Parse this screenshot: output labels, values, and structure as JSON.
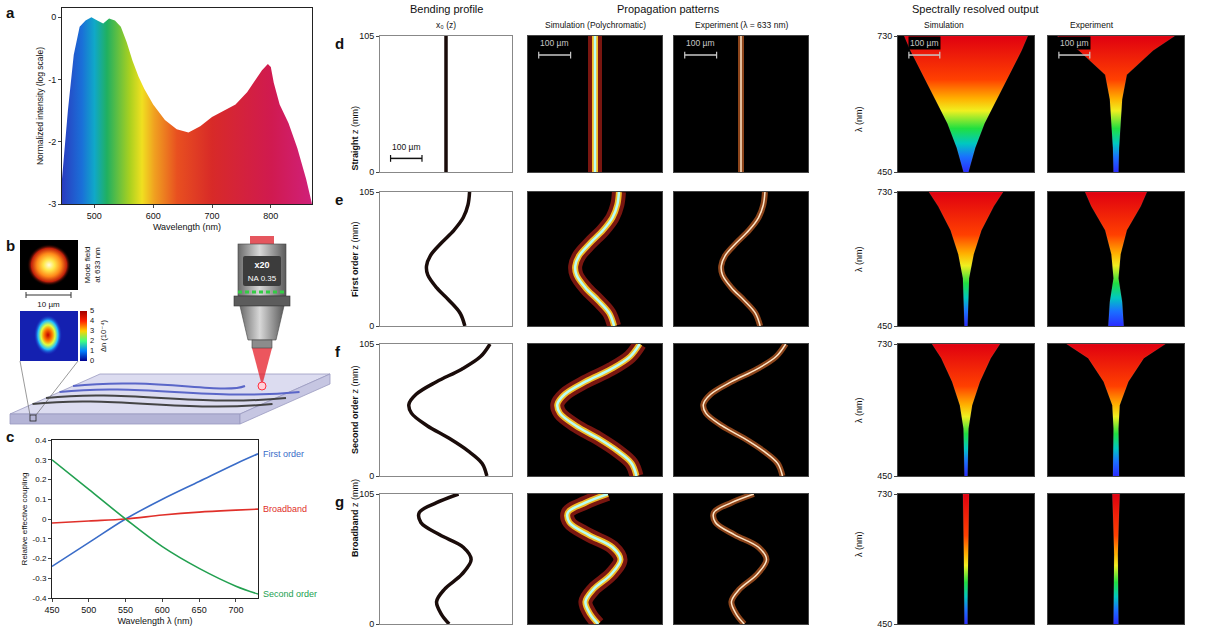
{
  "chart_data": [
    {
      "panel": "a",
      "type": "area",
      "x_label": "Wavelength (nm)",
      "y_label": "Normalized intensity (log scale)",
      "x": [
        445,
        455,
        465,
        475,
        485,
        495,
        505,
        515,
        525,
        535,
        545,
        555,
        565,
        575,
        585,
        600,
        620,
        640,
        660,
        680,
        700,
        720,
        740,
        760,
        775,
        785,
        795,
        800,
        805,
        815,
        830,
        845,
        860,
        870
      ],
      "values": [
        -2.6,
        -1.5,
        -0.6,
        -0.15,
        -0.05,
        0,
        -0.05,
        -0.1,
        -0.02,
        -0.05,
        -0.15,
        -0.4,
        -0.7,
        -0.95,
        -1.15,
        -1.4,
        -1.65,
        -1.8,
        -1.85,
        -1.75,
        -1.6,
        -1.5,
        -1.4,
        -1.2,
        -1.0,
        -0.85,
        -0.75,
        -0.8,
        -1.05,
        -1.4,
        -1.7,
        -2.1,
        -2.6,
        -3.0
      ],
      "xlim": [
        445,
        870
      ],
      "ylim": [
        -3,
        0.15
      ],
      "xticks": [
        500,
        600,
        700,
        800
      ],
      "yticks": [
        0,
        -1,
        -2,
        -3
      ]
    },
    {
      "panel": "c",
      "type": "line",
      "x_label": "Wavelength λ (nm)",
      "y_label": "Relative effective coupling",
      "x": [
        450,
        500,
        550,
        600,
        650,
        700,
        730
      ],
      "series": [
        {
          "name": "First order",
          "color": "#3a6cc8",
          "values": [
            -0.24,
            -0.12,
            0,
            0.1,
            0.19,
            0.28,
            0.33
          ]
        },
        {
          "name": "Broadband",
          "color": "#e0302a",
          "values": [
            -0.02,
            -0.01,
            0,
            0.02,
            0.035,
            0.045,
            0.05
          ]
        },
        {
          "name": "Second order",
          "color": "#22a050",
          "values": [
            0.3,
            0.15,
            0,
            -0.14,
            -0.25,
            -0.34,
            -0.38
          ]
        }
      ],
      "xlim": [
        450,
        730
      ],
      "ylim": [
        -0.4,
        0.4
      ],
      "xticks": [
        450,
        500,
        550,
        600,
        650,
        700
      ],
      "yticks": [
        -0.4,
        -0.3,
        -0.2,
        -0.1,
        0,
        0.1,
        0.2,
        0.3,
        0.4
      ]
    },
    {
      "panel": "d",
      "type": "line",
      "row_title": "Straight",
      "y_label": "z (mm)",
      "ylim": [
        0,
        105
      ],
      "yticks": [
        0,
        105
      ],
      "xlim": [
        -210,
        210
      ],
      "tick_labels": "y",
      "bending_profile": {
        "z": [
          0,
          105
        ],
        "x0": [
          0,
          0
        ]
      },
      "spectral": {
        "type": "area",
        "y_label": "λ (nm)",
        "ylim": [
          450,
          730
        ],
        "yticks": [
          450,
          730
        ],
        "xlim": [
          -220,
          220
        ],
        "wavelength": [
          450,
          500,
          550,
          600,
          650,
          700,
          730
        ],
        "simulation": {
          "left": [
            -8,
            -30,
            -60,
            -100,
            -140,
            -180,
            -200
          ],
          "right": [
            8,
            30,
            60,
            100,
            140,
            180,
            200
          ]
        },
        "experiment": {
          "left": [
            -8,
            -10,
            -15,
            -20,
            -35,
            -120,
            -190
          ],
          "right": [
            8,
            10,
            15,
            20,
            35,
            120,
            190
          ]
        }
      },
      "scale_bar": {
        "length": 100,
        "label": "100 µm"
      }
    },
    {
      "panel": "e",
      "type": "line",
      "row_title": "First order",
      "y_label": "z (mm)",
      "ylim": [
        0,
        105
      ],
      "yticks": [
        0,
        105
      ],
      "xlim": [
        -210,
        210
      ],
      "tick_labels": "y",
      "bending_profile": {
        "z": [
          0,
          10,
          20,
          30,
          40,
          47,
          55,
          65,
          75,
          85,
          95,
          105
        ],
        "x0": [
          60,
          45,
          10,
          -30,
          -58,
          -62,
          -50,
          -15,
          25,
          55,
          70,
          75
        ]
      },
      "spectral": {
        "type": "area",
        "y_label": "λ (nm)",
        "ylim": [
          450,
          730
        ],
        "yticks": [
          450,
          730
        ],
        "xlim": [
          -220,
          220
        ],
        "wavelength": [
          450,
          500,
          550,
          600,
          650,
          700,
          730
        ],
        "simulation": {
          "left": [
            -5,
            -8,
            -10,
            -25,
            -50,
            -90,
            -120
          ],
          "right": [
            5,
            8,
            10,
            25,
            50,
            90,
            120
          ]
        },
        "experiment": {
          "left": [
            -25,
            -20,
            -8,
            -15,
            -35,
            -80,
            -100
          ],
          "right": [
            25,
            20,
            8,
            15,
            35,
            80,
            100
          ]
        }
      }
    },
    {
      "panel": "f",
      "type": "line",
      "row_title": "Second order",
      "y_label": "z (mm)",
      "ylim": [
        0,
        105
      ],
      "yticks": [
        0,
        105
      ],
      "xlim": [
        -210,
        210
      ],
      "tick_labels": "y",
      "bending_profile": {
        "z": [
          0,
          10,
          20,
          30,
          40,
          50,
          57,
          65,
          75,
          85,
          95,
          105
        ],
        "x0": [
          130,
          115,
          70,
          10,
          -60,
          -110,
          -118,
          -95,
          -30,
          50,
          110,
          140
        ]
      },
      "spectral": {
        "type": "area",
        "y_label": "λ (nm)",
        "ylim": [
          450,
          730
        ],
        "yticks": [
          450,
          730
        ],
        "xlim": [
          -220,
          220
        ],
        "wavelength": [
          450,
          500,
          550,
          600,
          650,
          700,
          730
        ],
        "simulation": {
          "left": [
            -5,
            -6,
            -8,
            -20,
            -45,
            -80,
            -110
          ],
          "right": [
            5,
            6,
            8,
            20,
            45,
            80,
            110
          ]
        },
        "experiment": {
          "left": [
            -10,
            -8,
            -8,
            -12,
            -40,
            -90,
            -160
          ],
          "right": [
            10,
            8,
            8,
            12,
            40,
            90,
            160
          ]
        }
      }
    },
    {
      "panel": "g",
      "type": "line",
      "row_title": "Broadband",
      "y_label": "z (mm)",
      "ylim": [
        0,
        105
      ],
      "yticks": [
        0,
        105
      ],
      "xlim": [
        -210,
        210
      ],
      "tick_labels": "y",
      "bending_profile": {
        "z": [
          0,
          8,
          18,
          28,
          40,
          52,
          62,
          72,
          82,
          90,
          98,
          105
        ],
        "x0": [
          10,
          -15,
          -30,
          -5,
          50,
          80,
          55,
          -20,
          -80,
          -85,
          -30,
          40
        ]
      },
      "spectral": {
        "type": "area",
        "y_label": "λ (nm)",
        "ylim": [
          450,
          730
        ],
        "yticks": [
          450,
          730
        ],
        "xlim": [
          -220,
          220
        ],
        "wavelength": [
          450,
          500,
          550,
          600,
          650,
          700,
          730
        ],
        "simulation": {
          "left": [
            -5,
            -5,
            -6,
            -7,
            -8,
            -9,
            -10
          ],
          "right": [
            5,
            5,
            6,
            7,
            8,
            9,
            10
          ]
        },
        "experiment": {
          "left": [
            -8,
            -7,
            -6,
            -6,
            -8,
            -10,
            -12
          ],
          "right": [
            8,
            7,
            6,
            6,
            8,
            10,
            12
          ]
        }
      }
    }
  ],
  "column_groups": [
    {
      "title": "Bending profile",
      "columns": [
        "x₀ (z)"
      ]
    },
    {
      "title": "Propagation patterns",
      "columns": [
        "Simulation (Polychromatic)",
        "Experiment (λ = 633 nm)"
      ]
    },
    {
      "title": "Spectrally resolved output",
      "columns": [
        "Simulation",
        "Experiment"
      ]
    }
  ],
  "diagram": {
    "panel": "b",
    "mode_field_label": "Mode field at 633 nm",
    "mode_scale_bar": {
      "length": 10,
      "label": "10 µm"
    },
    "index_colorbar": {
      "label": "Δn (10⁻⁴)",
      "range": [
        0,
        5
      ],
      "ticks": [
        0,
        1,
        2,
        3,
        4,
        5
      ]
    },
    "objective": {
      "magnification": "x20",
      "aperture": "NA 0.35"
    }
  }
}
